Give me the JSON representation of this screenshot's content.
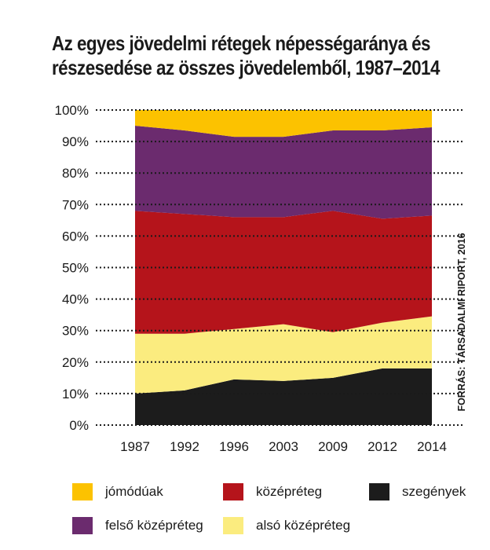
{
  "title_lines": [
    "Az egyes jövedelmi rétegek népességaránya és",
    "részesedése az összes jövedelemből, 1987–2014"
  ],
  "source": "FORRÁS: TÁRSADALMI RIPORT, 2016",
  "chart_data": {
    "type": "area",
    "stacked": true,
    "x": [
      "1987",
      "1992",
      "1996",
      "2003",
      "2009",
      "2012",
      "2014"
    ],
    "ylim": [
      0,
      100
    ],
    "yticks": [
      "0%",
      "10%",
      "20%",
      "30%",
      "40%",
      "50%",
      "60%",
      "70%",
      "80%",
      "90%",
      "100%"
    ],
    "grid": "horizontal dotted",
    "legend_position": "bottom",
    "series": [
      {
        "name": "szegények",
        "color": "#1c1c1c",
        "values": [
          10,
          11,
          14.5,
          14,
          15,
          18,
          18
        ]
      },
      {
        "name": "alsó középréteg",
        "color": "#fbec7f",
        "values": [
          19,
          18,
          16,
          18,
          14.5,
          14.5,
          16.5
        ]
      },
      {
        "name": "középréteg",
        "color": "#b5141b",
        "values": [
          39,
          38,
          35.5,
          34,
          38.5,
          33,
          32
        ]
      },
      {
        "name": "felső középréteg",
        "color": "#6b2b6e",
        "values": [
          27,
          26.5,
          25.5,
          25.5,
          25.5,
          28,
          28
        ]
      },
      {
        "name": "jómódúak",
        "color": "#fcc200",
        "values": [
          5,
          6.5,
          8.5,
          8.5,
          6.5,
          6.5,
          5.5
        ]
      }
    ]
  },
  "legend": {
    "items": [
      {
        "label": "jómódúak",
        "color": "#fcc200"
      },
      {
        "label": "középréteg",
        "color": "#b5141b"
      },
      {
        "label": "szegények",
        "color": "#1c1c1c"
      },
      {
        "label": "felső középréteg",
        "color": "#6b2b6e"
      },
      {
        "label": "alsó középréteg",
        "color": "#fbec7f"
      }
    ]
  }
}
